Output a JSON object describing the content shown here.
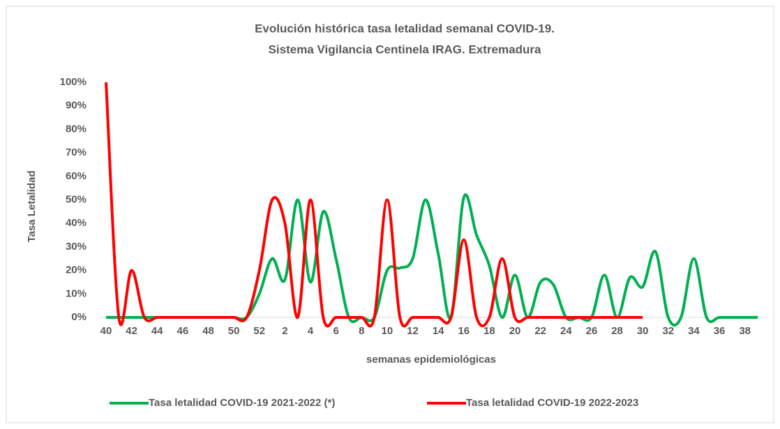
{
  "chart_data": {
    "type": "line",
    "title": [
      "Evolución histórica tasa letalidad semanal COVID-19.",
      "Sistema  Vigilancia Centinela IRAG. Extremadura"
    ],
    "x_label": "semanas epidemiológicas",
    "y_label": "Tasa Letalidad",
    "categories": [
      "40",
      null,
      "42",
      null,
      "44",
      null,
      "46",
      null,
      "48",
      null,
      "50",
      null,
      "52",
      null,
      "2",
      null,
      "4",
      null,
      "6",
      null,
      "8",
      null,
      "10",
      null,
      "12",
      null,
      "14",
      null,
      "16",
      null,
      "18",
      null,
      "20",
      null,
      "22",
      null,
      "24",
      null,
      "26",
      null,
      "28",
      null,
      "30",
      null,
      "32",
      null,
      "34",
      null,
      "36",
      null,
      "38",
      null
    ],
    "series": [
      {
        "name": "Tasa letalidad COVID-19 2021-2022 (*)",
        "color": "#00b050",
        "values": [
          0,
          0,
          0,
          0,
          0,
          0,
          0,
          0,
          0,
          0,
          0,
          0,
          10,
          25,
          16,
          50,
          15,
          45,
          25,
          0,
          0,
          0,
          20,
          21,
          25,
          50,
          27,
          0,
          51,
          35,
          22,
          0,
          18,
          0,
          15,
          14,
          0,
          0,
          0,
          18,
          0,
          17,
          13,
          28,
          0,
          0,
          25,
          0,
          0,
          0,
          0,
          0
        ]
      },
      {
        "name": "Tasa letalidad COVID-19 2022-2023",
        "color": "#ff0000",
        "values": [
          100,
          0,
          20,
          0,
          0,
          0,
          0,
          0,
          0,
          0,
          0,
          0,
          20,
          50,
          40,
          0,
          50,
          0,
          0,
          0,
          0,
          0,
          50,
          0,
          0,
          0,
          0,
          0,
          33,
          0,
          0,
          25,
          0,
          0,
          0,
          0,
          0,
          0,
          0,
          0,
          0,
          0,
          0,
          null,
          null,
          null,
          null,
          null,
          null,
          null,
          null,
          null
        ]
      }
    ],
    "ylim": [
      0,
      100
    ],
    "yticks": [
      {
        "value": 0,
        "label": "0%"
      },
      {
        "value": 10,
        "label": "10%"
      },
      {
        "value": 20,
        "label": "20%"
      },
      {
        "value": 30,
        "label": "30%"
      },
      {
        "value": 40,
        "label": "40%"
      },
      {
        "value": 50,
        "label": "50%"
      },
      {
        "value": 60,
        "label": "60%"
      },
      {
        "value": 70,
        "label": "70%"
      },
      {
        "value": 80,
        "label": "80%"
      },
      {
        "value": 90,
        "label": "90%"
      },
      {
        "value": 100,
        "label": "100%"
      }
    ],
    "legend": "bottom"
  }
}
